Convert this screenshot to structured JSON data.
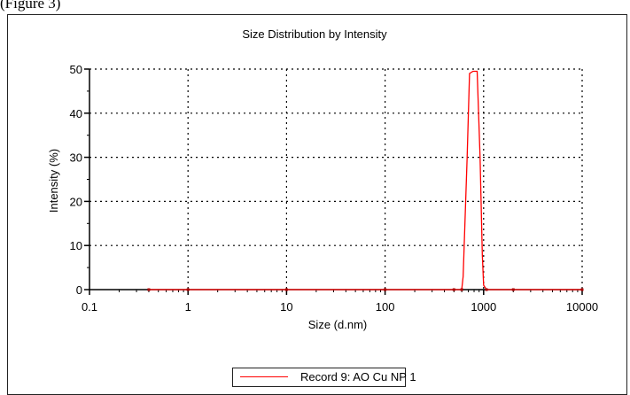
{
  "caption_fragment": "(Figure 3)",
  "chart_data": {
    "type": "line",
    "title": "Size Distribution by Intensity",
    "xlabel": "Size (d.nm)",
    "ylabel": "Intensity (%)",
    "xscale": "log",
    "xlim": [
      0.1,
      10000
    ],
    "ylim": [
      0,
      50
    ],
    "x_ticks": [
      {
        "value": 0.1,
        "label": "0.1"
      },
      {
        "value": 1,
        "label": "1"
      },
      {
        "value": 10,
        "label": "10"
      },
      {
        "value": 100,
        "label": "100"
      },
      {
        "value": 1000,
        "label": "1000"
      },
      {
        "value": 10000,
        "label": "10000"
      }
    ],
    "y_ticks": [
      {
        "value": 0,
        "label": "0"
      },
      {
        "value": 10,
        "label": "10"
      },
      {
        "value": 20,
        "label": "20"
      },
      {
        "value": 30,
        "label": "30"
      },
      {
        "value": 40,
        "label": "40"
      },
      {
        "value": 50,
        "label": "50"
      }
    ],
    "grid": "dotted",
    "legend_position": "bottom-center",
    "series": [
      {
        "name": "Record 9: AO Cu NP 1",
        "color": "#ff0000",
        "points": [
          [
            0.4,
            0
          ],
          [
            1,
            0
          ],
          [
            10,
            0
          ],
          [
            100,
            0
          ],
          [
            500,
            0
          ],
          [
            600,
            0
          ],
          [
            620,
            3
          ],
          [
            680,
            30
          ],
          [
            720,
            49
          ],
          [
            780,
            49.5
          ],
          [
            860,
            49.5
          ],
          [
            920,
            30
          ],
          [
            970,
            8
          ],
          [
            1000,
            1
          ],
          [
            1070,
            0
          ],
          [
            2000,
            0
          ],
          [
            10000,
            0
          ]
        ]
      }
    ]
  }
}
